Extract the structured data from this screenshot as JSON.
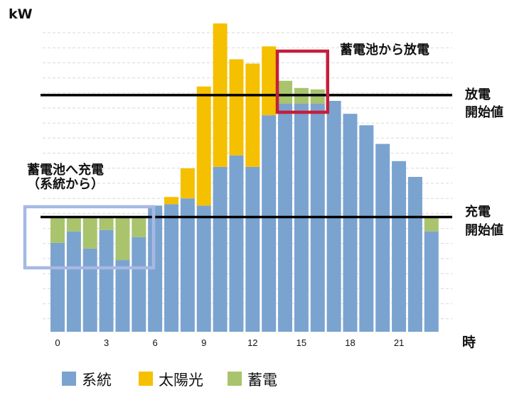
{
  "chart_data": {
    "type": "bar",
    "stacked": true,
    "ylabel": "kW",
    "xlabel": "時",
    "categories": [
      "0",
      "1",
      "2",
      "3",
      "4",
      "5",
      "6",
      "7",
      "8",
      "9",
      "10",
      "11",
      "12",
      "13",
      "14",
      "15",
      "16",
      "17",
      "18",
      "19",
      "20",
      "21",
      "22",
      "23"
    ],
    "x_tick_labels": [
      "0",
      "3",
      "6",
      "9",
      "12",
      "15",
      "18",
      "21"
    ],
    "ylim": [
      0,
      10.7
    ],
    "grid": true,
    "series": [
      {
        "name": "系統",
        "color": "#7ba3cf",
        "values": [
          3.1,
          3.5,
          2.9,
          3.55,
          2.5,
          3.3,
          4.4,
          4.45,
          4.65,
          4.4,
          5.75,
          6.15,
          5.75,
          7.55,
          7.95,
          7.95,
          7.95,
          8.05,
          7.6,
          7.2,
          6.55,
          5.95,
          5.4,
          3.5
        ]
      },
      {
        "name": "太陽光",
        "color": "#f5c000",
        "values": [
          0,
          0,
          0,
          0,
          0,
          0,
          0,
          0.25,
          1.05,
          4.15,
          5.0,
          3.35,
          3.6,
          2.4,
          0,
          0,
          0,
          0,
          0,
          0,
          0,
          0,
          0,
          0
        ]
      },
      {
        "name": "蓄電",
        "color": "#a9c46c",
        "values": [
          0.9,
          0.5,
          1.1,
          0.45,
          1.5,
          0.7,
          0,
          0,
          0,
          0,
          0,
          0,
          0,
          0,
          0.8,
          0.55,
          0.5,
          0,
          0,
          0,
          0,
          0,
          0,
          0.5
        ]
      }
    ],
    "legend_position": "bottom-left",
    "thresholds": [
      {
        "label": "放電開始値",
        "line1": "放電",
        "line2": "開始値",
        "value": 8.25
      },
      {
        "label": "充電開始値",
        "line1": "充電",
        "line2": "開始値",
        "value": 4.0
      }
    ],
    "annotations": [
      {
        "text": "蓄電池から放電",
        "color": "#c41e3a",
        "range": [
          14,
          16
        ]
      },
      {
        "lines": [
          "蓄電池へ充電",
          "（系統から）"
        ],
        "color": "#a6b9e3",
        "range": [
          0,
          6
        ]
      }
    ]
  }
}
